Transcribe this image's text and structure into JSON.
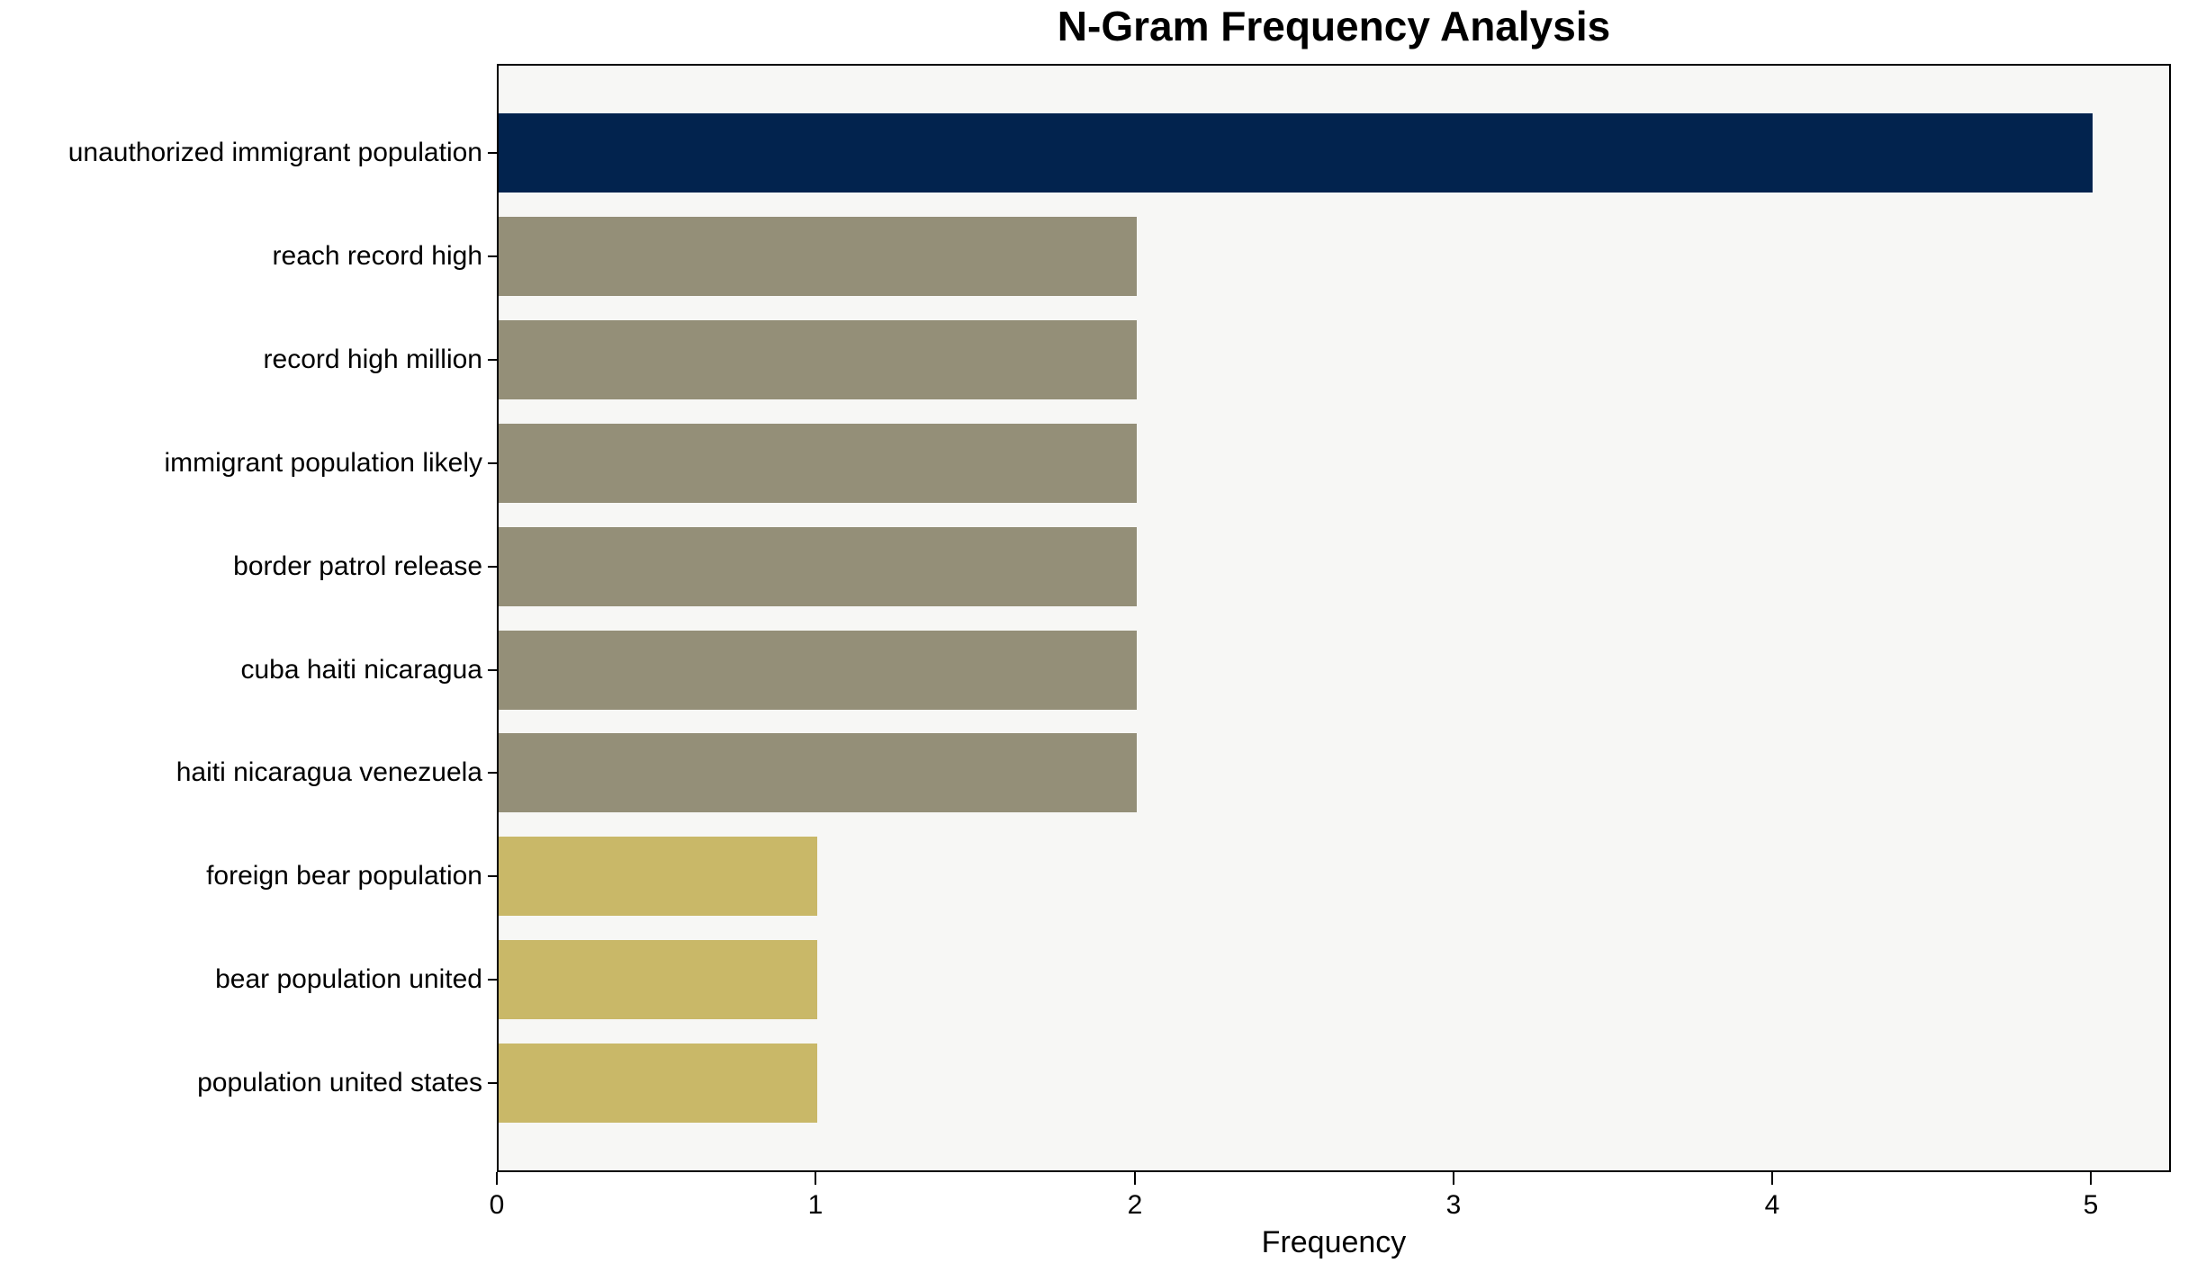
{
  "chart_data": {
    "type": "bar",
    "orientation": "horizontal",
    "title": "N-Gram Frequency Analysis",
    "xlabel": "Frequency",
    "ylabel": "",
    "categories": [
      "unauthorized immigrant population",
      "reach record high",
      "record high million",
      "immigrant population likely",
      "border patrol release",
      "cuba haiti nicaragua",
      "haiti nicaragua venezuela",
      "foreign bear population",
      "bear population united",
      "population united states"
    ],
    "values": [
      5,
      2,
      2,
      2,
      2,
      2,
      2,
      1,
      1,
      1
    ],
    "bar_colors": [
      "#02234e",
      "#948f78",
      "#948f78",
      "#948f78",
      "#948f78",
      "#948f78",
      "#948f78",
      "#c9b868",
      "#c9b868",
      "#c9b868"
    ],
    "x_ticks": [
      0,
      1,
      2,
      3,
      4,
      5
    ],
    "xlim": [
      0,
      5.25
    ],
    "grid": false,
    "legend": null,
    "plot_background": "#f7f7f5",
    "figure_background": "#ffffff",
    "axis_color": "#000000",
    "text_color": "#000000"
  }
}
